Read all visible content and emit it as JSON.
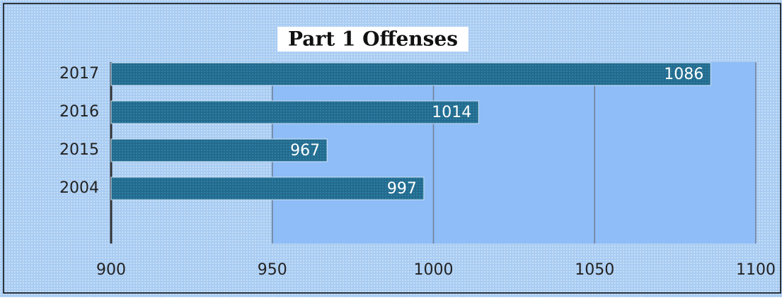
{
  "chart_data": {
    "type": "bar",
    "orientation": "horizontal",
    "title": "Part 1 Offenses",
    "categories": [
      "2017",
      "2016",
      "2015",
      "2004"
    ],
    "values": [
      1086,
      1014,
      967,
      997
    ],
    "color": "#236b8e",
    "xlim": [
      900,
      1100
    ],
    "xticks": [
      900,
      950,
      1000,
      1050,
      1100
    ],
    "grid": true
  }
}
